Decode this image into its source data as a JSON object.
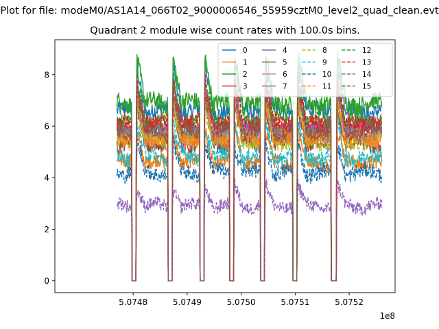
{
  "suptitle": "Plot for file: modeM0/AS1A14_066T02_9000006546_55959cztM0_level2_quad_clean.evt",
  "chart_data": {
    "type": "line",
    "title": "Quadrant 2 module wise count rates with 100.0s bins.",
    "xlabel": "",
    "ylabel": "",
    "offset_text": "1e8",
    "x_tick_labels": [
      "5.0748",
      "5.0749",
      "5.0750",
      "5.0751",
      "5.0752"
    ],
    "x_tick_values": [
      507480000,
      507490000,
      507500000,
      507510000,
      507520000
    ],
    "y_tick_labels": [
      "0",
      "2",
      "4",
      "6",
      "8"
    ],
    "y_tick_values": [
      0,
      2,
      4,
      6,
      8
    ],
    "xlim": [
      507465500,
      507528500
    ],
    "ylim": [
      -0.46,
      9.35
    ],
    "x_range": [
      507477000,
      507526000
    ],
    "gaps": [
      [
        507479800,
        507480550
      ],
      [
        507486450,
        507487200
      ],
      [
        507492350,
        507493100
      ],
      [
        507497850,
        507498600
      ],
      [
        507503550,
        507504300
      ],
      [
        507509550,
        507510300
      ],
      [
        507516650,
        507517650
      ]
    ],
    "orbit_peaks": [
      507480700,
      507487400,
      507493300,
      507498800,
      507504500,
      507510500,
      507517800
    ],
    "legend": {
      "position": "top-right",
      "columns": 4
    },
    "series": [
      {
        "name": "0",
        "color": "#1f77b4",
        "linestyle": "solid",
        "level": 6.6,
        "amplitude": 0.3
      },
      {
        "name": "1",
        "color": "#ff7f0e",
        "linestyle": "solid",
        "level": 4.6,
        "amplitude": 0.3
      },
      {
        "name": "2",
        "color": "#2ca02c",
        "linestyle": "solid",
        "level": 6.9,
        "amplitude": 0.35
      },
      {
        "name": "3",
        "color": "#d62728",
        "linestyle": "solid",
        "level": 6.0,
        "amplitude": 0.3
      },
      {
        "name": "4",
        "color": "#9467bd",
        "linestyle": "solid",
        "level": 5.9,
        "amplitude": 0.3
      },
      {
        "name": "5",
        "color": "#8c564b",
        "linestyle": "solid",
        "level": 5.3,
        "amplitude": 0.3
      },
      {
        "name": "6",
        "color": "#e377c2",
        "linestyle": "solid",
        "level": 5.6,
        "amplitude": 0.3
      },
      {
        "name": "7",
        "color": "#7f7f7f",
        "linestyle": "solid",
        "level": 5.7,
        "amplitude": 0.3
      },
      {
        "name": "8",
        "color": "#bcbd22",
        "linestyle": "dashed",
        "level": 5.4,
        "amplitude": 0.3
      },
      {
        "name": "9",
        "color": "#17becf",
        "linestyle": "dashed",
        "level": 4.8,
        "amplitude": 0.3
      },
      {
        "name": "10",
        "color": "#1f77b4",
        "linestyle": "dashed",
        "level": 4.2,
        "amplitude": 0.3
      },
      {
        "name": "11",
        "color": "#ff7f0e",
        "linestyle": "dashed",
        "level": 5.5,
        "amplitude": 0.3
      },
      {
        "name": "12",
        "color": "#2ca02c",
        "linestyle": "dashed",
        "level": 6.2,
        "amplitude": 0.3
      },
      {
        "name": "13",
        "color": "#d62728",
        "linestyle": "dashed",
        "level": 6.1,
        "amplitude": 0.3
      },
      {
        "name": "14",
        "color": "#9467bd",
        "linestyle": "dashed",
        "level": 2.9,
        "amplitude": 0.25
      },
      {
        "name": "15",
        "color": "#8c564b",
        "linestyle": "dashed",
        "level": 5.8,
        "amplitude": 0.3
      }
    ]
  }
}
